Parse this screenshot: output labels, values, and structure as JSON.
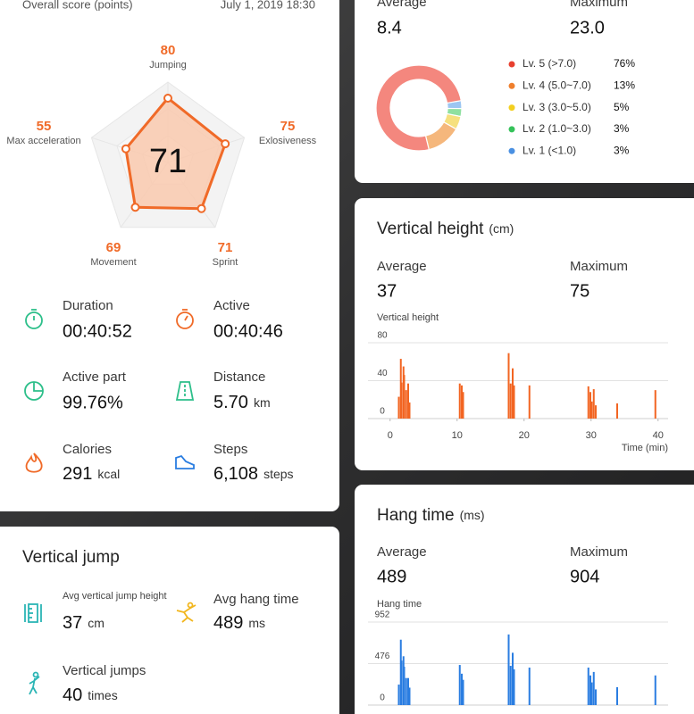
{
  "overall": {
    "title": "Overall score (points)",
    "date": "July 1, 2019 18:30"
  },
  "metrics": [
    {
      "label": "Duration",
      "value": "00:40:52"
    },
    {
      "label": "Active",
      "value": "00:40:46"
    },
    {
      "label": "Active part",
      "value": "99.76%"
    },
    {
      "label": "Distance",
      "value": "5.70",
      "unit": "km"
    },
    {
      "label": "Calories",
      "value": 291,
      "unit": "kcal"
    },
    {
      "label": "Steps",
      "value": "6,108",
      "unit": "steps"
    }
  ],
  "vertical_jump": {
    "title": "Vertical jump",
    "items": [
      {
        "label": "Avg vertical jump height",
        "value": 37,
        "unit": "cm"
      },
      {
        "label": "Avg hang time",
        "value": 489,
        "unit": "ms"
      },
      {
        "label": "Vertical jumps",
        "value": 40,
        "unit": "times"
      }
    ]
  },
  "speed": {
    "average_label": "Average",
    "average": "8.4",
    "maximum_label": "Maximum",
    "maximum": "23.0"
  },
  "chart_data": [
    {
      "type": "radar",
      "categories": [
        "Jumping",
        "Exlosiveness",
        "Sprint",
        "Movement",
        "Max acceleration"
      ],
      "values": [
        80,
        75,
        71,
        69,
        55
      ],
      "center_value": 71,
      "rlim": [
        0,
        100
      ],
      "color": "#f06a28"
    },
    {
      "type": "donut",
      "categories": [
        "Lv. 5 (>7.0)",
        "Lv. 4 (5.0~7.0)",
        "Lv. 3 (3.0~5.0)",
        "Lv. 2 (1.0~3.0)",
        "Lv. 1 (<1.0)"
      ],
      "values": [
        76,
        13,
        5,
        3,
        3
      ],
      "value_labels": [
        "76%",
        "13%",
        "5%",
        "3%",
        "3%"
      ],
      "colors": [
        "#e8402f",
        "#ef7f2d",
        "#f3cf1f",
        "#35c25a",
        "#4a90e2"
      ],
      "fill_colors": [
        "#f4877e",
        "#f5b77c",
        "#f6e07e",
        "#8fe0a0",
        "#9dc6f2"
      ]
    },
    {
      "type": "bar",
      "title": "Vertical height",
      "unit": "(cm)",
      "average_label": "Average",
      "average": 37,
      "maximum_label": "Maximum",
      "maximum": 75,
      "y_label": "Vertical height",
      "x_label": "Time (min)",
      "x": [
        1.3,
        1.6,
        1.7,
        2.0,
        2.1,
        2.4,
        2.7,
        2.9,
        10.4,
        10.7,
        10.9,
        17.7,
        18.0,
        18.3,
        18.5,
        20.8,
        29.6,
        29.9,
        30.1,
        30.4,
        30.7,
        33.9,
        39.6
      ],
      "values": [
        23,
        63,
        38,
        55,
        46,
        30,
        37,
        17,
        37,
        35,
        28,
        69,
        37,
        53,
        35,
        35,
        34,
        28,
        18,
        31,
        14,
        16,
        30
      ],
      "xlim": [
        -3.3,
        41.5
      ],
      "xticks": [
        0,
        10,
        20,
        30,
        40
      ],
      "ylim": [
        0,
        80
      ],
      "yticks": [
        0,
        40,
        80
      ],
      "color": "#f26522"
    },
    {
      "type": "bar",
      "title": "Hang time",
      "unit": "(ms)",
      "average_label": "Average",
      "average": 489,
      "maximum_label": "Maximum",
      "maximum": 904,
      "y_label": "Hang time",
      "x": [
        1.3,
        1.6,
        1.7,
        2.0,
        2.1,
        2.4,
        2.7,
        2.9,
        10.4,
        10.7,
        10.9,
        17.7,
        18.0,
        18.3,
        18.5,
        20.8,
        29.6,
        29.9,
        30.1,
        30.4,
        30.7,
        33.9,
        39.6
      ],
      "values": [
        235,
        750,
        510,
        560,
        440,
        310,
        310,
        200,
        460,
        360,
        290,
        810,
        450,
        600,
        410,
        430,
        430,
        340,
        260,
        380,
        180,
        205,
        340
      ],
      "xlim": [
        -3.3,
        41.5
      ],
      "ylim": [
        0,
        952
      ],
      "yticks": [
        0,
        476,
        952
      ],
      "color": "#2a7de1"
    }
  ]
}
